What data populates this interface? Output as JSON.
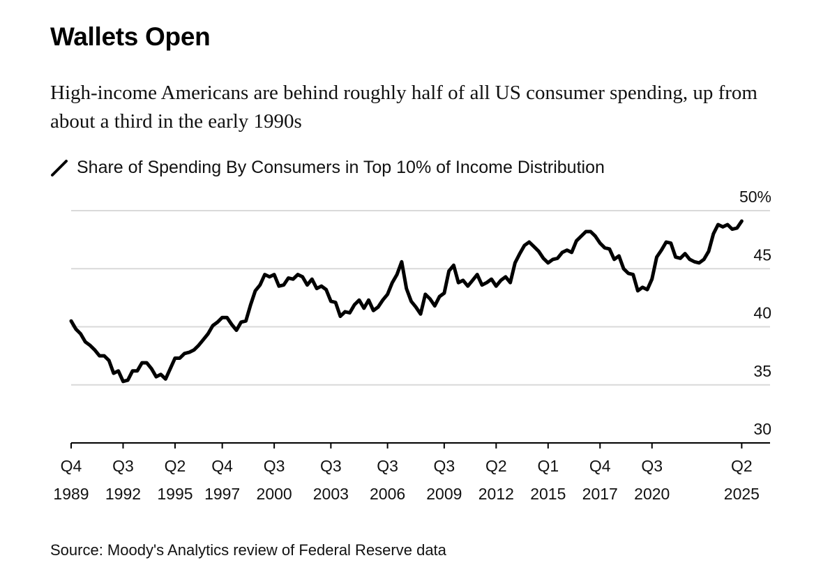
{
  "header": {
    "title": "Wallets Open",
    "subtitle": "High-income Americans are behind roughly half of all US consumer spending, up from about a third in the early 1990s"
  },
  "footer": {
    "source": "Source: Moody's Analytics review of Federal Reserve data"
  },
  "chart_data": {
    "type": "line",
    "title": "Wallets Open",
    "subtitle": "High-income Americans are behind roughly half of all US consumer spending, up from about a third in the early 1990s",
    "xlabel": "",
    "ylabel": "",
    "ylim": [
      30,
      50
    ],
    "xlim": [
      1989.875,
      2026.875
    ],
    "grid": true,
    "legend_position": "top-left",
    "line_color": "#000000",
    "grid_color": "#d9d9d9",
    "y_ticks": [
      {
        "value": 50,
        "label": "50%"
      },
      {
        "value": 45,
        "label": "45"
      },
      {
        "value": 40,
        "label": "40"
      },
      {
        "value": 35,
        "label": "35"
      },
      {
        "value": 30,
        "label": "30"
      }
    ],
    "x_ticks": [
      {
        "value": 1989.875,
        "line1": "Q4",
        "line2": "1989"
      },
      {
        "value": 1992.625,
        "line1": "Q3",
        "line2": "1992"
      },
      {
        "value": 1995.375,
        "line1": "Q2",
        "line2": "1995"
      },
      {
        "value": 1997.875,
        "line1": "Q4",
        "line2": "1997"
      },
      {
        "value": 2000.625,
        "line1": "Q3",
        "line2": "2000"
      },
      {
        "value": 2003.625,
        "line1": "Q3",
        "line2": "2003"
      },
      {
        "value": 2006.625,
        "line1": "Q3",
        "line2": "2006"
      },
      {
        "value": 2009.625,
        "line1": "Q3",
        "line2": "2009"
      },
      {
        "value": 2012.375,
        "line1": "Q2",
        "line2": "2012"
      },
      {
        "value": 2015.125,
        "line1": "Q1",
        "line2": "2015"
      },
      {
        "value": 2017.875,
        "line1": "Q4",
        "line2": "2017"
      },
      {
        "value": 2020.625,
        "line1": "Q3",
        "line2": "2020"
      },
      {
        "value": 2025.375,
        "line1": "Q2",
        "line2": "2025"
      }
    ],
    "series": [
      {
        "name": "Share of Spending By Consumers in Top 10% of Income Distribution",
        "points": [
          [
            1989.875,
            40.5
          ],
          [
            1990.125,
            39.8
          ],
          [
            1990.375,
            39.4
          ],
          [
            1990.625,
            38.7
          ],
          [
            1990.875,
            38.4
          ],
          [
            1991.125,
            38.0
          ],
          [
            1991.375,
            37.5
          ],
          [
            1991.625,
            37.5
          ],
          [
            1991.875,
            37.1
          ],
          [
            1992.125,
            36.0
          ],
          [
            1992.375,
            36.2
          ],
          [
            1992.625,
            35.3
          ],
          [
            1992.875,
            35.4
          ],
          [
            1993.125,
            36.2
          ],
          [
            1993.375,
            36.2
          ],
          [
            1993.625,
            36.9
          ],
          [
            1993.875,
            36.9
          ],
          [
            1994.125,
            36.4
          ],
          [
            1994.375,
            35.7
          ],
          [
            1994.625,
            35.9
          ],
          [
            1994.875,
            35.5
          ],
          [
            1995.125,
            36.4
          ],
          [
            1995.375,
            37.3
          ],
          [
            1995.625,
            37.3
          ],
          [
            1995.875,
            37.7
          ],
          [
            1996.125,
            37.8
          ],
          [
            1996.375,
            38.0
          ],
          [
            1996.625,
            38.4
          ],
          [
            1996.875,
            38.9
          ],
          [
            1997.125,
            39.4
          ],
          [
            1997.375,
            40.1
          ],
          [
            1997.625,
            40.4
          ],
          [
            1997.875,
            40.8
          ],
          [
            1998.125,
            40.8
          ],
          [
            1998.375,
            40.2
          ],
          [
            1998.625,
            39.7
          ],
          [
            1998.875,
            40.4
          ],
          [
            1999.125,
            40.5
          ],
          [
            1999.375,
            41.9
          ],
          [
            1999.625,
            43.1
          ],
          [
            1999.875,
            43.6
          ],
          [
            2000.125,
            44.5
          ],
          [
            2000.375,
            44.3
          ],
          [
            2000.625,
            44.5
          ],
          [
            2000.875,
            43.5
          ],
          [
            2001.125,
            43.6
          ],
          [
            2001.375,
            44.2
          ],
          [
            2001.625,
            44.1
          ],
          [
            2001.875,
            44.5
          ],
          [
            2002.125,
            44.3
          ],
          [
            2002.375,
            43.6
          ],
          [
            2002.625,
            44.1
          ],
          [
            2002.875,
            43.3
          ],
          [
            2003.125,
            43.5
          ],
          [
            2003.375,
            43.2
          ],
          [
            2003.625,
            42.2
          ],
          [
            2003.875,
            42.1
          ],
          [
            2004.125,
            40.9
          ],
          [
            2004.375,
            41.3
          ],
          [
            2004.625,
            41.2
          ],
          [
            2004.875,
            41.9
          ],
          [
            2005.125,
            42.3
          ],
          [
            2005.375,
            41.6
          ],
          [
            2005.625,
            42.3
          ],
          [
            2005.875,
            41.4
          ],
          [
            2006.125,
            41.7
          ],
          [
            2006.375,
            42.3
          ],
          [
            2006.625,
            42.8
          ],
          [
            2006.875,
            43.8
          ],
          [
            2007.125,
            44.5
          ],
          [
            2007.375,
            45.6
          ],
          [
            2007.625,
            43.3
          ],
          [
            2007.875,
            42.2
          ],
          [
            2008.125,
            41.7
          ],
          [
            2008.375,
            41.1
          ],
          [
            2008.625,
            42.8
          ],
          [
            2008.875,
            42.4
          ],
          [
            2009.125,
            41.8
          ],
          [
            2009.375,
            42.6
          ],
          [
            2009.625,
            42.9
          ],
          [
            2009.875,
            44.8
          ],
          [
            2010.125,
            45.3
          ],
          [
            2010.375,
            43.8
          ],
          [
            2010.625,
            44.0
          ],
          [
            2010.875,
            43.5
          ],
          [
            2011.125,
            44.0
          ],
          [
            2011.375,
            44.5
          ],
          [
            2011.625,
            43.6
          ],
          [
            2011.875,
            43.8
          ],
          [
            2012.125,
            44.1
          ],
          [
            2012.375,
            43.5
          ],
          [
            2012.625,
            44.0
          ],
          [
            2012.875,
            44.3
          ],
          [
            2013.125,
            43.8
          ],
          [
            2013.375,
            45.5
          ],
          [
            2013.625,
            46.3
          ],
          [
            2013.875,
            47.0
          ],
          [
            2014.125,
            47.3
          ],
          [
            2014.375,
            46.9
          ],
          [
            2014.625,
            46.5
          ],
          [
            2014.875,
            45.9
          ],
          [
            2015.125,
            45.5
          ],
          [
            2015.375,
            45.8
          ],
          [
            2015.625,
            45.9
          ],
          [
            2015.875,
            46.4
          ],
          [
            2016.125,
            46.6
          ],
          [
            2016.375,
            46.4
          ],
          [
            2016.625,
            47.4
          ],
          [
            2016.875,
            47.8
          ],
          [
            2017.125,
            48.2
          ],
          [
            2017.375,
            48.2
          ],
          [
            2017.625,
            47.8
          ],
          [
            2017.875,
            47.2
          ],
          [
            2018.125,
            46.8
          ],
          [
            2018.375,
            46.7
          ],
          [
            2018.625,
            45.8
          ],
          [
            2018.875,
            46.1
          ],
          [
            2019.125,
            45.0
          ],
          [
            2019.375,
            44.6
          ],
          [
            2019.625,
            44.5
          ],
          [
            2019.875,
            43.1
          ],
          [
            2020.125,
            43.4
          ],
          [
            2020.375,
            43.2
          ],
          [
            2020.625,
            44.1
          ],
          [
            2020.875,
            46.0
          ],
          [
            2021.125,
            46.6
          ],
          [
            2021.375,
            47.3
          ],
          [
            2021.625,
            47.2
          ],
          [
            2021.875,
            46.0
          ],
          [
            2022.125,
            45.9
          ],
          [
            2022.375,
            46.3
          ],
          [
            2022.625,
            45.8
          ],
          [
            2022.875,
            45.6
          ],
          [
            2023.125,
            45.5
          ],
          [
            2023.375,
            45.8
          ],
          [
            2023.625,
            46.5
          ],
          [
            2023.875,
            48.0
          ],
          [
            2024.125,
            48.8
          ],
          [
            2024.375,
            48.6
          ],
          [
            2024.625,
            48.8
          ],
          [
            2024.875,
            48.4
          ],
          [
            2025.125,
            48.5
          ],
          [
            2025.375,
            49.1
          ]
        ]
      }
    ]
  }
}
